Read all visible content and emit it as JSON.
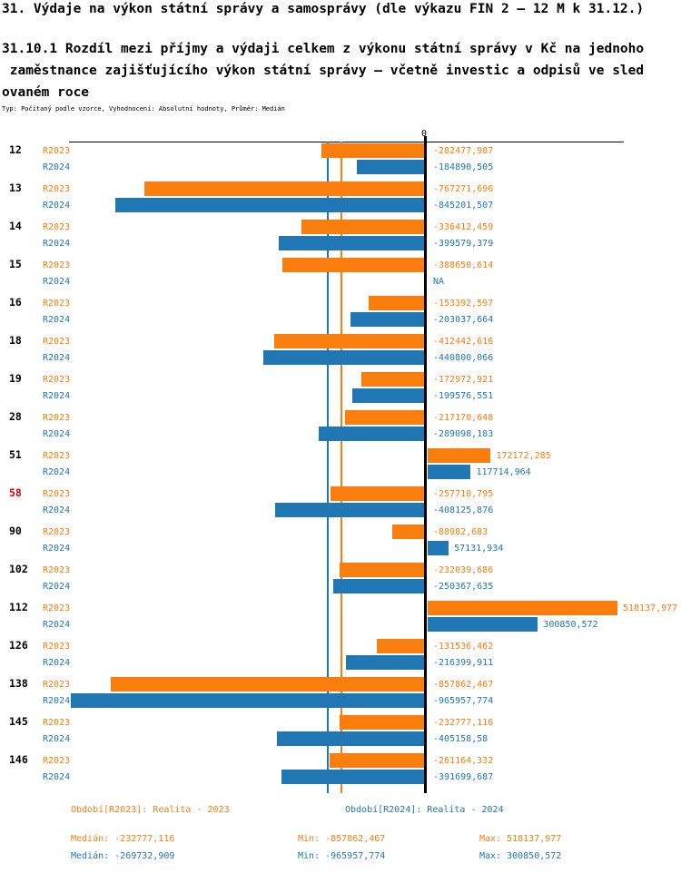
{
  "header": {
    "title": "31. Výdaje na výkon státní správy a samosprávy (dle výkazu FIN 2 – 12 M k 31.12.)",
    "subtitle_lines": [
      "31.10.1 Rozdíl mezi příjmy a výdaji celkem z výkonu státní správy v Kč na jednoho",
      " zaměstnance zajišťujícího výkon státní správy – včetně investic a odpisů ve sled",
      "ovaném roce"
    ],
    "meta": "Typ: Počítaný podle vzorce, Vyhodnocení: Absolutní hodnoty, Průměr: Medián"
  },
  "colors": {
    "r2023": "#fa7e0e",
    "r2024": "#2177b4",
    "highlight": "#e60000",
    "axis": "#000000"
  },
  "chart_data": {
    "type": "bar",
    "orientation": "horizontal",
    "zero_tick_label": "0",
    "na_label": "NA",
    "grid": false,
    "legend_position": "bottom",
    "xlim": [
      -977000,
      538000
    ],
    "categories": [
      "12",
      "13",
      "14",
      "15",
      "16",
      "18",
      "19",
      "28",
      "51",
      "58",
      "90",
      "102",
      "112",
      "126",
      "138",
      "145",
      "146"
    ],
    "highlighted_category": "58",
    "series": [
      {
        "name": "R2023",
        "color": "#fa7e0e",
        "values": [
          -282477.987,
          -767271.696,
          -336412.459,
          -388650.614,
          -153392.597,
          -412442.616,
          -172972.921,
          -217170.648,
          172172.285,
          -257710.795,
          -88982.683,
          -232039.686,
          518137.977,
          -131536.462,
          -857862.467,
          -232777.116,
          -261164.332
        ],
        "value_labels": [
          "-282477,987",
          "-767271,696",
          "-336412,459",
          "-388650,614",
          "-153392,597",
          "-412442,616",
          "-172972,921",
          "-217170,648",
          "172172,285",
          "-257710,795",
          "-88982,683",
          "-232039,686",
          "518137,977",
          "-131536,462",
          "-857862,467",
          "-232777,116",
          "-261164,332"
        ]
      },
      {
        "name": "R2024",
        "color": "#2177b4",
        "values": [
          -184890.505,
          -845201.507,
          -399579.379,
          null,
          -203037.664,
          -440800.066,
          -199576.551,
          -289098.183,
          117714.964,
          -408125.876,
          57131.934,
          -250367.635,
          300850.572,
          -216399.911,
          -965957.774,
          -405158.58,
          -391699.687
        ],
        "value_labels": [
          "-184890,505",
          "-845201,507",
          "-399579,379",
          "NA",
          "-203037,664",
          "-440800,066",
          "-199576,551",
          "-289098,183",
          "117714,964",
          "-408125,876",
          "57131,934",
          "-250367,635",
          "300850,572",
          "-216399,911",
          "-965957,774",
          "-405158,58",
          "-391699,687"
        ]
      }
    ],
    "medians": {
      "r2023": -232777.116,
      "r2024": -269732.909
    }
  },
  "legend": {
    "r2023": "Období[R2023]: Realita - 2023",
    "r2024": "Období[R2024]: Realita - 2024"
  },
  "stats": {
    "r2023": {
      "median": "Medián: -232777,116",
      "min": "Min: -857862,467",
      "max": "Max: 518137,977"
    },
    "r2024": {
      "median": "Medián: -269732,909",
      "min": "Min: -965957,774",
      "max": "Max: 300850,572"
    }
  }
}
